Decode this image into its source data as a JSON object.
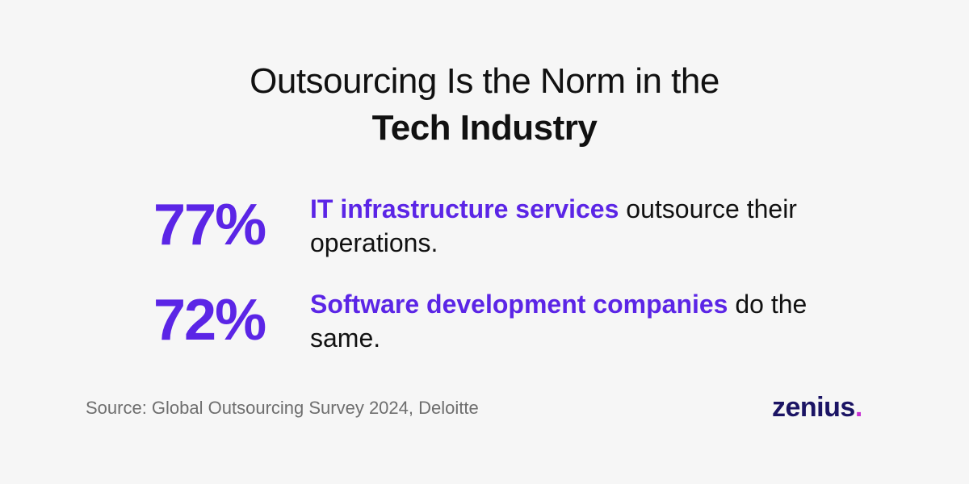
{
  "colors": {
    "background": "#f6f6f6",
    "accent": "#5b25e6",
    "text": "#111111",
    "muted": "#6e6e6e",
    "logo": "#1b1464",
    "logo_dot": "#c82fd4"
  },
  "title": {
    "line1": "Outsourcing Is the Norm in the",
    "line2": "Tech Industry"
  },
  "stats": [
    {
      "value": "77%",
      "highlight": "IT infrastructure services",
      "rest": " outsource their operations."
    },
    {
      "value": "72%",
      "highlight": "Software development companies",
      "rest": " do the same."
    }
  ],
  "source": "Source: Global Outsourcing Survey 2024, Deloitte",
  "logo": {
    "name": "zenius",
    "dot": "."
  }
}
